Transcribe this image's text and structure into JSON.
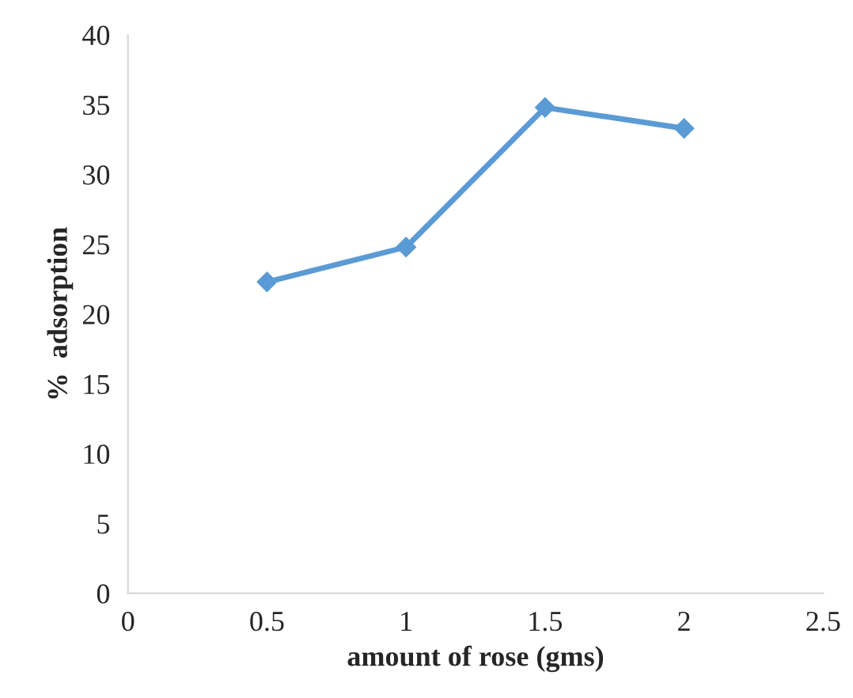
{
  "chart_data": {
    "type": "line",
    "xlabel": "amount of rose (gms)",
    "ylabel": "%  adsorption",
    "x": [
      0.5,
      1,
      1.5,
      2
    ],
    "series": [
      {
        "color": "#5b9bd5",
        "values": [
          22.3,
          24.8,
          34.8,
          33.3
        ]
      }
    ],
    "xlim": [
      0,
      2.5
    ],
    "xticks": [
      0,
      0.5,
      1,
      1.5,
      2,
      2.5
    ],
    "ylim": [
      0,
      40
    ],
    "yticks": [
      0,
      5,
      10,
      15,
      20,
      25,
      30,
      35,
      40
    ],
    "grid": false,
    "legend": false,
    "marker": "diamond",
    "line_style": "solid"
  }
}
